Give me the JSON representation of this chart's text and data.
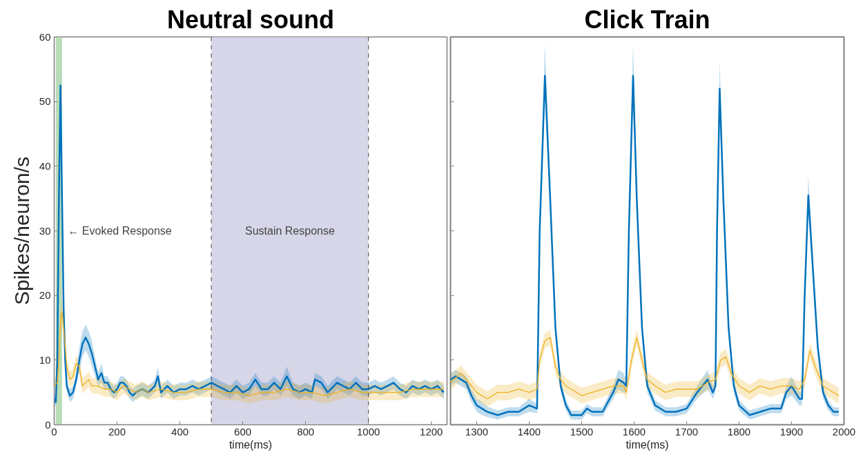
{
  "chart_data": [
    {
      "type": "line",
      "title": "Neutral sound",
      "xlabel": "time(ms)",
      "ylabel": "Spikes/neuron/s",
      "xlim": [
        0,
        1250
      ],
      "xticks": [
        0,
        200,
        400,
        600,
        800,
        1000,
        1200
      ],
      "ylim": [
        0,
        60
      ],
      "yticks": [
        0,
        10,
        20,
        30,
        40,
        50,
        60
      ],
      "grid": false,
      "series": [
        {
          "color": "#0072bd",
          "x": [
            0,
            5,
            10,
            15,
            20,
            25,
            30,
            35,
            40,
            50,
            60,
            70,
            80,
            90,
            100,
            110,
            120,
            130,
            140,
            150,
            160,
            170,
            180,
            190,
            200,
            210,
            220,
            230,
            240,
            250,
            260,
            280,
            300,
            320,
            330,
            340,
            360,
            380,
            400,
            420,
            440,
            460,
            480,
            500,
            520,
            540,
            560,
            580,
            600,
            620,
            640,
            660,
            680,
            700,
            720,
            740,
            760,
            780,
            800,
            820,
            830,
            850,
            870,
            900,
            920,
            940,
            960,
            980,
            1000,
            1020,
            1040,
            1060,
            1080,
            1100,
            1120,
            1140,
            1160,
            1180,
            1200,
            1220,
            1240
          ],
          "values": [
            4,
            3.5,
            10,
            35,
            52.5,
            35,
            18,
            10,
            6,
            4.5,
            5,
            7,
            10,
            12.5,
            13.5,
            12.5,
            11,
            9,
            7,
            8,
            6.5,
            6.5,
            5.5,
            5,
            5.5,
            6.5,
            6.5,
            6,
            5,
            4.5,
            5,
            5.5,
            5,
            6,
            7.5,
            5,
            6,
            5,
            5.5,
            5.5,
            6,
            5.5,
            6,
            6.5,
            6,
            5.5,
            5,
            6,
            5,
            5.5,
            7,
            5.5,
            5.5,
            6.5,
            5.5,
            7.5,
            5.5,
            5,
            5.5,
            5,
            7,
            6.5,
            5,
            6.5,
            6,
            5.5,
            6.5,
            5.5,
            5.5,
            6,
            5.5,
            6,
            6.5,
            5.5,
            5,
            6,
            5.5,
            6,
            5.5,
            6,
            5
          ],
          "lower": [
            3,
            2.8,
            8,
            32,
            50.5,
            32,
            16,
            8.5,
            5,
            3.5,
            4,
            6,
            8,
            10.5,
            11.5,
            10.5,
            9,
            7.5,
            6,
            6.5,
            5.5,
            5.5,
            4.5,
            4,
            4.5,
            5.5,
            5.5,
            5,
            4,
            3.5,
            4,
            4.5,
            4,
            5,
            6,
            4,
            5,
            4,
            4.5,
            4.5,
            5,
            4.5,
            5,
            5.5,
            5,
            4.5,
            4,
            5,
            4,
            4.5,
            6,
            4.5,
            4.5,
            5.5,
            4.5,
            6,
            4.5,
            4,
            4.5,
            4,
            6,
            5.5,
            4,
            5.5,
            5,
            4.5,
            5.5,
            4.5,
            4.5,
            5,
            4.5,
            5,
            5.5,
            4.5,
            4,
            5,
            4.5,
            5,
            4.5,
            5,
            4
          ],
          "upper": [
            5,
            4.2,
            12,
            38,
            54.5,
            38,
            20,
            11.5,
            7,
            5.5,
            6,
            8,
            12,
            14.5,
            15.5,
            14.5,
            13,
            10.5,
            8,
            9.5,
            7.5,
            7.5,
            6.5,
            6,
            6.5,
            7.5,
            7.5,
            7,
            6,
            5.5,
            6,
            6.5,
            6,
            7,
            9,
            6,
            7,
            6,
            6.5,
            6.5,
            7,
            6.5,
            7,
            7.5,
            7,
            6.5,
            6,
            7,
            6,
            6.5,
            8,
            6.5,
            6.5,
            7.5,
            6.5,
            9,
            6.5,
            6,
            6.5,
            6,
            8,
            7.5,
            6,
            7.5,
            7,
            6.5,
            7.5,
            6.5,
            6.5,
            7,
            6.5,
            7,
            7.5,
            6.5,
            6,
            7,
            6.5,
            7,
            6.5,
            7,
            6
          ]
        },
        {
          "color": "#edb120",
          "x": [
            0,
            10,
            15,
            20,
            25,
            30,
            40,
            50,
            60,
            70,
            80,
            90,
            100,
            110,
            120,
            140,
            160,
            180,
            200,
            220,
            240,
            260,
            280,
            300,
            340,
            380,
            420,
            460,
            500,
            540,
            580,
            620,
            660,
            700,
            740,
            780,
            820,
            860,
            900,
            940,
            980,
            1020,
            1060,
            1100,
            1140,
            1180,
            1220,
            1240
          ],
          "values": [
            6,
            6.5,
            10,
            16,
            17.5,
            15,
            9,
            7,
            7.5,
            9.5,
            9,
            6,
            6.5,
            7,
            6,
            6,
            5.5,
            5.5,
            5,
            6,
            5.5,
            5,
            5.5,
            5,
            5.5,
            5,
            5,
            5.5,
            5.5,
            5,
            5,
            4.5,
            5,
            5,
            5.5,
            5,
            5,
            4.5,
            5,
            5.5,
            5,
            5,
            5,
            5,
            5.5,
            5.5,
            5.5,
            5.5
          ],
          "lower": [
            4.8,
            5.3,
            8.5,
            14,
            15.5,
            13,
            7.8,
            5.8,
            6.3,
            8.3,
            7.8,
            4.8,
            5.3,
            5.8,
            4.8,
            4.8,
            4.3,
            4.3,
            3.8,
            4.8,
            4.3,
            3.8,
            4.3,
            3.8,
            4.3,
            3.8,
            3.8,
            4.3,
            4.3,
            3.8,
            3.8,
            3.3,
            3.8,
            3.8,
            4.3,
            3.8,
            3.8,
            3.3,
            3.8,
            4.3,
            3.8,
            3.8,
            3.8,
            3.8,
            4.3,
            4.3,
            4.3,
            4.3
          ],
          "upper": [
            7.2,
            7.7,
            11.5,
            18,
            19.5,
            17,
            10.2,
            8.2,
            8.7,
            10.7,
            10.2,
            7.2,
            7.7,
            8.2,
            7.2,
            7.2,
            6.7,
            6.7,
            6.2,
            7.2,
            6.7,
            6.2,
            6.7,
            6.2,
            6.7,
            6.2,
            6.2,
            6.7,
            6.7,
            6.2,
            6.2,
            5.7,
            6.2,
            6.2,
            6.7,
            6.2,
            6.2,
            5.7,
            6.2,
            6.7,
            6.2,
            6.2,
            6.2,
            6.2,
            6.7,
            6.7,
            6.7,
            6.7
          ]
        }
      ],
      "bands": [
        {
          "axis": "x",
          "from": 500,
          "to": 1000,
          "label": "Sustain Response",
          "color": "#d6d6e8"
        },
        {
          "axis": "x",
          "from": 5,
          "to": 25,
          "color": "#b8dcb8"
        }
      ],
      "ref_lines": [
        {
          "axis": "x",
          "value": 500,
          "color": "#404040",
          "line_style": "dashed"
        },
        {
          "axis": "x",
          "value": 1000,
          "color": "#404040",
          "line_style": "dashed"
        }
      ],
      "annotations": [
        "← Evoked Response"
      ]
    },
    {
      "type": "line",
      "title": "Click Train",
      "xlabel": "time(ms)",
      "xlim": [
        1250,
        2000
      ],
      "xticks": [
        1300,
        1400,
        1500,
        1600,
        1700,
        1800,
        1900,
        2000
      ],
      "ylim": [
        0,
        60
      ],
      "yticks": [
        0,
        10,
        20,
        30,
        40,
        50,
        60
      ],
      "tick_labels": "x",
      "grid": false,
      "series": [
        {
          "color": "#0072bd",
          "x": [
            1250,
            1260,
            1270,
            1280,
            1290,
            1300,
            1310,
            1320,
            1340,
            1360,
            1380,
            1400,
            1415,
            1420,
            1430,
            1440,
            1450,
            1460,
            1470,
            1480,
            1500,
            1510,
            1520,
            1540,
            1560,
            1570,
            1580,
            1585,
            1590,
            1598,
            1605,
            1615,
            1625,
            1640,
            1660,
            1680,
            1700,
            1720,
            1740,
            1750,
            1755,
            1758,
            1763,
            1770,
            1780,
            1790,
            1800,
            1820,
            1840,
            1860,
            1880,
            1890,
            1900,
            1915,
            1920,
            1925,
            1932,
            1940,
            1950,
            1960,
            1970,
            1980,
            1990
          ],
          "values": [
            7,
            7.5,
            7,
            6.5,
            4.5,
            3,
            2.5,
            2,
            1.5,
            2,
            2,
            3,
            2.5,
            30,
            54,
            35,
            15,
            6,
            3,
            1.5,
            1.5,
            2.5,
            2,
            2,
            5,
            7,
            6.5,
            6,
            30,
            54,
            35,
            15,
            6,
            3,
            2,
            2,
            2.5,
            5,
            7,
            5,
            6,
            30,
            52,
            35,
            15,
            6,
            3,
            1.5,
            2,
            2.5,
            2.5,
            5,
            6,
            4,
            4,
            20,
            35.5,
            25,
            12,
            5,
            3,
            2,
            2
          ],
          "lower": [
            6,
            6.5,
            6,
            5.5,
            3.5,
            2,
            1.5,
            1.2,
            0.8,
            1.3,
            1.3,
            2,
            1.8,
            28,
            51,
            33,
            13.5,
            5,
            2.2,
            0.8,
            0.8,
            1.8,
            1.3,
            1.3,
            4,
            5.5,
            5,
            5,
            28,
            51,
            33,
            13.5,
            5,
            2.2,
            1.3,
            1.3,
            1.8,
            4,
            5.5,
            4,
            5,
            28,
            49,
            33,
            13.5,
            5,
            2.2,
            0.8,
            1.3,
            1.8,
            1.8,
            4,
            4.5,
            3,
            3,
            18,
            33,
            23,
            10.5,
            4,
            2.2,
            1.3,
            1.3
          ],
          "upper": [
            8,
            8.5,
            8,
            7.5,
            5.5,
            4,
            3.5,
            2.8,
            2.2,
            2.7,
            2.7,
            4,
            3.2,
            32,
            59,
            37,
            16.5,
            7,
            3.8,
            2.2,
            2.2,
            3.2,
            2.7,
            2.7,
            6,
            8.5,
            8,
            7,
            32,
            59,
            37,
            16.5,
            7,
            3.8,
            2.7,
            2.7,
            3.2,
            6,
            8.5,
            6,
            7,
            32,
            56.5,
            37,
            16.5,
            7,
            3.8,
            2.2,
            2.7,
            3.2,
            3.2,
            6,
            7.5,
            5,
            5,
            22,
            38.5,
            27,
            13.5,
            6,
            3.8,
            2.7,
            2.7
          ]
        },
        {
          "color": "#edb120",
          "x": [
            1250,
            1270,
            1280,
            1290,
            1300,
            1320,
            1330,
            1340,
            1360,
            1380,
            1400,
            1415,
            1420,
            1430,
            1440,
            1450,
            1460,
            1470,
            1480,
            1500,
            1520,
            1540,
            1560,
            1580,
            1585,
            1595,
            1605,
            1615,
            1625,
            1640,
            1660,
            1680,
            1700,
            1720,
            1740,
            1755,
            1765,
            1775,
            1785,
            1800,
            1820,
            1840,
            1860,
            1880,
            1900,
            1915,
            1925,
            1935,
            1945,
            1960,
            1980,
            1990
          ],
          "values": [
            6.5,
            8,
            7,
            6,
            5,
            4,
            4.5,
            5,
            5,
            5.5,
            5,
            5.5,
            10,
            13,
            13.5,
            9,
            7,
            6,
            5.5,
            4.5,
            5,
            5.5,
            6,
            6,
            5,
            10,
            13.5,
            10,
            7,
            6,
            5,
            5.5,
            5.5,
            5.5,
            6.5,
            7,
            10,
            10.5,
            8,
            6,
            5,
            6,
            5.5,
            6,
            6,
            5.5,
            7,
            11.5,
            9,
            6,
            5,
            4.5
          ],
          "lower": [
            5.3,
            6.8,
            5.8,
            4.8,
            3.8,
            2.8,
            3.3,
            3.8,
            3.8,
            4.3,
            3.8,
            4.3,
            8.8,
            11.8,
            12.3,
            7.8,
            5.8,
            4.8,
            4.3,
            3.3,
            3.8,
            4.3,
            4.8,
            4.8,
            3.8,
            8.8,
            12.3,
            8.8,
            5.8,
            4.8,
            3.8,
            4.3,
            4.3,
            4.3,
            5.3,
            5.8,
            8.8,
            9.3,
            6.8,
            4.8,
            3.8,
            4.8,
            4.3,
            4.8,
            4.8,
            4.3,
            5.8,
            10.3,
            7.8,
            4.8,
            3.8,
            3.3
          ],
          "upper": [
            7.7,
            9.2,
            8.2,
            7.2,
            6.2,
            5.2,
            5.7,
            6.2,
            6.2,
            6.7,
            6.2,
            6.7,
            11.2,
            14.2,
            14.7,
            10.2,
            8.2,
            7.2,
            6.7,
            5.7,
            6.2,
            6.7,
            7.2,
            7.2,
            6.2,
            11.2,
            14.7,
            11.2,
            8.2,
            7.2,
            6.2,
            6.7,
            6.7,
            6.7,
            7.7,
            8.2,
            11.2,
            11.7,
            9.2,
            7.2,
            6.2,
            7.2,
            6.7,
            7.2,
            7.2,
            6.7,
            8.2,
            12.7,
            10.2,
            7.2,
            6.2,
            5.7
          ]
        }
      ]
    }
  ]
}
